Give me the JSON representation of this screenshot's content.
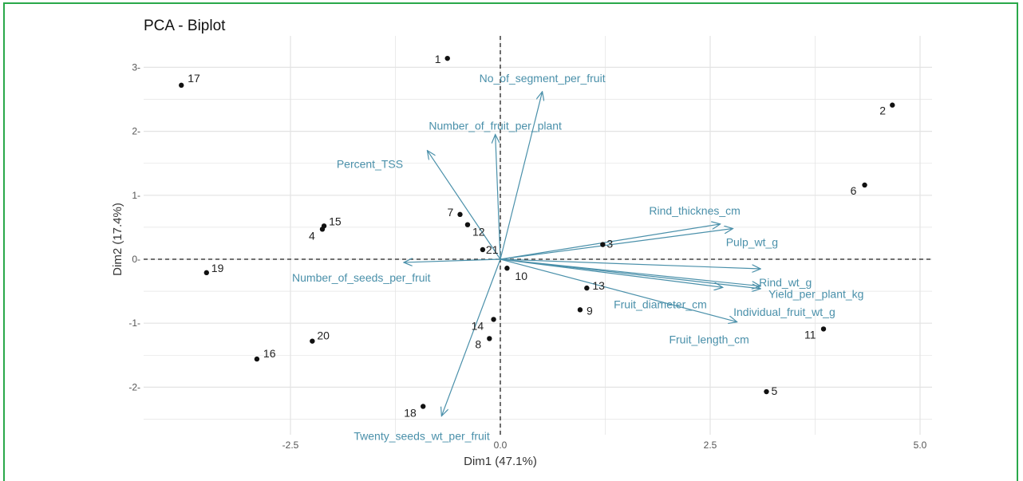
{
  "chart_data": {
    "type": "scatter",
    "title": "PCA - Biplot",
    "xlabel": "Dim1 (47.1%)",
    "ylabel": "Dim2 (17.4%)",
    "xlim": [
      -4.2,
      5.0
    ],
    "ylim": [
      -2.5,
      3.3
    ],
    "xticks": [
      -2.5,
      0.0,
      2.5,
      5.0
    ],
    "xtick_labels": [
      "-2.5",
      "0.0",
      "2.5",
      "5.0"
    ],
    "yticks": [
      -2,
      -1,
      0,
      1,
      2,
      3
    ],
    "ytick_labels": [
      "-2-",
      "-1-",
      "0-",
      "1-",
      "2-",
      "3-"
    ],
    "grid": true,
    "arrow_color": "#4a90aa",
    "point_color": "#111111",
    "individuals": [
      {
        "label": "1",
        "x": -0.63,
        "y": 3.14
      },
      {
        "label": "2",
        "x": 4.67,
        "y": 2.41
      },
      {
        "label": "3",
        "x": 1.22,
        "y": 0.23
      },
      {
        "label": "4",
        "x": -2.12,
        "y": 0.47
      },
      {
        "label": "5",
        "x": 3.17,
        "y": -2.07
      },
      {
        "label": "6",
        "x": 4.34,
        "y": 1.16
      },
      {
        "label": "7",
        "x": -0.48,
        "y": 0.7
      },
      {
        "label": "8",
        "x": -0.13,
        "y": -1.24
      },
      {
        "label": "9",
        "x": 0.95,
        "y": -0.79
      },
      {
        "label": "10",
        "x": 0.08,
        "y": -0.14
      },
      {
        "label": "11",
        "x": 3.85,
        "y": -1.09
      },
      {
        "label": "12",
        "x": -0.39,
        "y": 0.54
      },
      {
        "label": "13",
        "x": 1.03,
        "y": -0.45
      },
      {
        "label": "14",
        "x": -0.08,
        "y": -0.94
      },
      {
        "label": "15",
        "x": -2.1,
        "y": 0.52
      },
      {
        "label": "16",
        "x": -2.9,
        "y": -1.56
      },
      {
        "label": "17",
        "x": -3.8,
        "y": 2.72
      },
      {
        "label": "18",
        "x": -0.92,
        "y": -2.3
      },
      {
        "label": "19",
        "x": -3.5,
        "y": -0.21
      },
      {
        "label": "20",
        "x": -2.24,
        "y": -1.28
      },
      {
        "label": "21",
        "x": -0.21,
        "y": 0.15
      }
    ],
    "variables": [
      {
        "label": "No_of_segment_per_fruit",
        "x": 0.5,
        "y": 2.62
      },
      {
        "label": "Number_of_fruit_per_plant",
        "x": -0.06,
        "y": 1.95
      },
      {
        "label": "Percent_TSS",
        "x": -0.87,
        "y": 1.7
      },
      {
        "label": "Rind_thicknes_cm",
        "x": 2.62,
        "y": 0.55
      },
      {
        "label": "Pulp_wt_g",
        "x": 2.77,
        "y": 0.48
      },
      {
        "label": "Rind_wt_g",
        "x": 3.1,
        "y": -0.15
      },
      {
        "label": "Yield_per_plant_kg",
        "x": 3.1,
        "y": -0.42
      },
      {
        "label": "Individual_fruit_wt_g",
        "x": 3.1,
        "y": -0.46
      },
      {
        "label": "Fruit_diameter_cm",
        "x": 2.65,
        "y": -0.44
      },
      {
        "label": "Fruit_length_cm",
        "x": 2.82,
        "y": -0.98
      },
      {
        "label": "Number_of_seeds_per_fruit",
        "x": -1.15,
        "y": -0.05
      },
      {
        "label": "Twenty_seeds_wt_per_fruit",
        "x": -0.7,
        "y": -2.45
      }
    ]
  }
}
